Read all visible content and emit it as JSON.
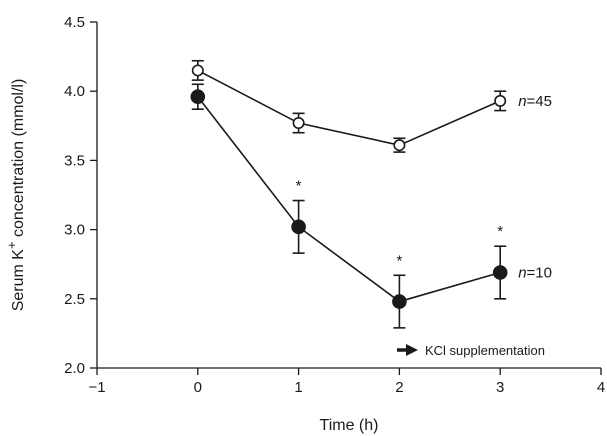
{
  "chart_data": {
    "type": "line",
    "xlabel": "Time (h)",
    "ylabel_text": "Serum K",
    "ylabel_sup": "+",
    "ylabel_rest": " concentration (mmol/l)",
    "xlim": [
      -1,
      4
    ],
    "ylim": [
      2.0,
      4.5
    ],
    "xticks": [
      -1,
      0,
      1,
      2,
      3,
      4
    ],
    "yticks": [
      "2.0",
      "2.5",
      "3.0",
      "3.5",
      "4.0",
      "4.5"
    ],
    "grid": false,
    "series": [
      {
        "label_n": "n",
        "label_value": "=45",
        "marker": "open-circle",
        "x": [
          0,
          1,
          2,
          3
        ],
        "y": [
          4.15,
          3.77,
          3.61,
          3.93
        ],
        "err": [
          0.07,
          0.07,
          0.05,
          0.07
        ]
      },
      {
        "label_n": "n",
        "label_value": "=10",
        "marker": "filled-circle",
        "x": [
          0,
          1,
          2,
          3
        ],
        "y": [
          3.96,
          3.02,
          2.48,
          2.69
        ],
        "err": [
          0.09,
          0.19,
          0.19,
          0.19
        ],
        "significance": [
          "",
          "*",
          "*",
          "*"
        ]
      }
    ],
    "annotation": {
      "text": "KCl supplementation",
      "arrow": "right-arrow-icon"
    }
  }
}
